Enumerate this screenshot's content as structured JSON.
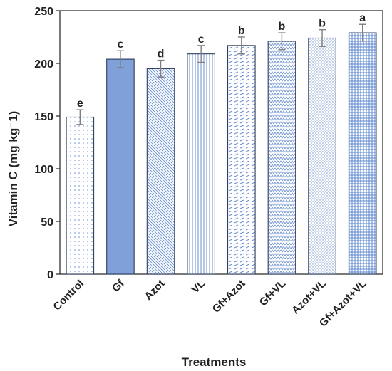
{
  "chart_data": {
    "type": "bar",
    "categories": [
      "Control",
      "Gf",
      "Azot",
      "VL",
      "Gf+Azot",
      "Gf+VL",
      "Azot+VL",
      "Gf+Azot+VL"
    ],
    "values": [
      149,
      204,
      195,
      209,
      217,
      221,
      224,
      229
    ],
    "errors": [
      7,
      8,
      8,
      8,
      8,
      8,
      8,
      8
    ],
    "significance": [
      "e",
      "c",
      "d",
      "c",
      "b",
      "b",
      "b",
      "a"
    ],
    "patterns": [
      "dots",
      "solid",
      "diagonal-down",
      "vertical",
      "dashes",
      "zigzag",
      "fine-dots",
      "grid"
    ],
    "xlabel": "Treatments",
    "ylabel": "Vitamin C (mg kg⁻1)",
    "ylim": [
      0,
      250
    ],
    "yticks": [
      0,
      50,
      100,
      150,
      200,
      250
    ],
    "grid": false,
    "colors": {
      "bar_fill": "#7fa0d8",
      "bar_outline": "#2f3f5f",
      "pattern_color": "#6a8fd0",
      "error_bar": "#7f7f7f",
      "axis": "#222222"
    }
  }
}
